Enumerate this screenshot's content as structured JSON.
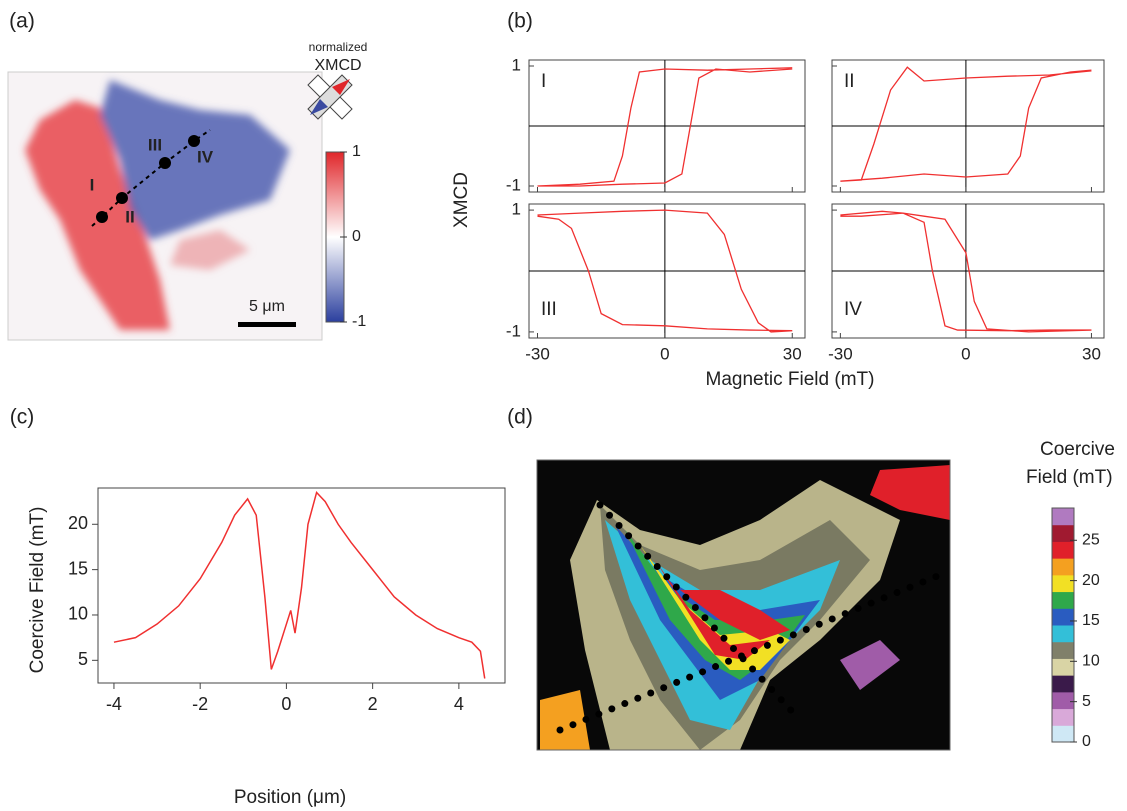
{
  "chart_data": [
    {
      "type": "image",
      "panel": "(a)",
      "colorbar_title": [
        "normalized",
        "XMCD"
      ],
      "clim": [
        -1,
        1
      ],
      "cticks": [
        1,
        0,
        -1
      ],
      "colors": [
        "#2b3f9e",
        "#ffffff",
        "#e0262a"
      ],
      "points": [
        "I",
        "II",
        "III",
        "IV"
      ],
      "scale_bar": "5 μm"
    },
    {
      "type": "hysteresis",
      "panel": "(b)",
      "xlabel": "Magnetic Field (mT)",
      "ylabel": "XMCD",
      "xlim": [
        -32,
        33
      ],
      "ylim": [
        -1.1,
        1.1
      ],
      "xticks": [
        -30,
        0,
        30
      ],
      "yticks": [
        1,
        -1
      ],
      "color": "#f03030",
      "subplots": [
        {
          "label": "I",
          "x": [
            30,
            20,
            10,
            0,
            -6,
            -8,
            -10,
            -12,
            -20,
            -30,
            -20,
            -10,
            0,
            4,
            6,
            8,
            12,
            20,
            30
          ],
          "values": [
            0.97,
            0.95,
            0.93,
            0.95,
            0.9,
            0.3,
            -0.5,
            -0.92,
            -0.97,
            -1.0,
            -1.0,
            -0.97,
            -0.95,
            -0.8,
            0,
            0.8,
            0.95,
            0.9,
            0.95
          ]
        },
        {
          "label": "II",
          "x": [
            30,
            20,
            10,
            0,
            -10,
            -14,
            -18,
            -22,
            -25,
            -30,
            -20,
            -10,
            0,
            10,
            13,
            15,
            18,
            25,
            30
          ],
          "values": [
            0.92,
            0.85,
            0.83,
            0.8,
            0.75,
            0.98,
            0.6,
            -0.3,
            -0.9,
            -0.92,
            -0.87,
            -0.8,
            -0.85,
            -0.8,
            -0.5,
            0.3,
            0.8,
            0.9,
            0.93
          ]
        },
        {
          "label": "III",
          "x": [
            -30,
            -20,
            -10,
            0,
            10,
            14,
            18,
            22,
            25,
            30,
            20,
            10,
            0,
            -10,
            -15,
            -18,
            -22,
            -25,
            -30
          ],
          "values": [
            0.92,
            0.95,
            0.98,
            1.0,
            0.95,
            0.6,
            -0.3,
            -0.85,
            -1.0,
            -0.98,
            -0.97,
            -0.95,
            -0.9,
            -0.88,
            -0.7,
            0,
            0.7,
            0.85,
            0.9
          ]
        },
        {
          "label": "IV",
          "x": [
            -30,
            -20,
            -15,
            -10,
            -5,
            0,
            2,
            5,
            15,
            30,
            20,
            10,
            -2,
            -5,
            -8,
            -10,
            -15,
            -25,
            -30
          ],
          "values": [
            0.92,
            0.98,
            0.95,
            0.9,
            0.85,
            0.3,
            -0.5,
            -0.95,
            -1.0,
            -0.97,
            -0.97,
            -0.98,
            -0.97,
            -0.9,
            0,
            0.8,
            0.95,
            0.9,
            0.9
          ]
        }
      ]
    },
    {
      "type": "line",
      "panel": "(c)",
      "xlabel": "Position (μm)",
      "ylabel": "Coercive Field (mT)",
      "xlim": [
        -4.37,
        5.07
      ],
      "ylim": [
        2.5,
        24
      ],
      "xticks": [
        -4,
        -2,
        0,
        2,
        4
      ],
      "yticks": [
        5,
        10,
        15,
        20
      ],
      "color": "#f03030",
      "x": [
        -4,
        -3.5,
        -3,
        -2.5,
        -2,
        -1.5,
        -1.2,
        -0.9,
        -0.7,
        -0.5,
        -0.35,
        -0.2,
        0,
        0.1,
        0.2,
        0.35,
        0.5,
        0.7,
        0.9,
        1.2,
        1.5,
        2,
        2.5,
        3,
        3.5,
        4,
        4.3,
        4.5,
        4.6
      ],
      "values": [
        7,
        7.5,
        9,
        11,
        14,
        18,
        21,
        22.8,
        21,
        12,
        4,
        6,
        9,
        10.5,
        8,
        13,
        20,
        23.5,
        22.5,
        20,
        18,
        15,
        12,
        10,
        8.5,
        7.5,
        7,
        6,
        3
      ]
    },
    {
      "type": "image",
      "panel": "(d)",
      "colorbar_title": [
        "Coercive",
        "Field (mT)"
      ],
      "clim": [
        0,
        29
      ],
      "cticks": [
        0,
        5,
        10,
        15,
        20,
        25
      ],
      "colors": [
        "#cfe8f5",
        "#d9a9d9",
        "#a05ca8",
        "#3a1a4a",
        "#d9d4a5",
        "#80806a",
        "#33bfd8",
        "#2a5cc0",
        "#2fa84a",
        "#f2e024",
        "#f4a020",
        "#e0202a",
        "#a01a30",
        "#b07ac0"
      ]
    }
  ]
}
